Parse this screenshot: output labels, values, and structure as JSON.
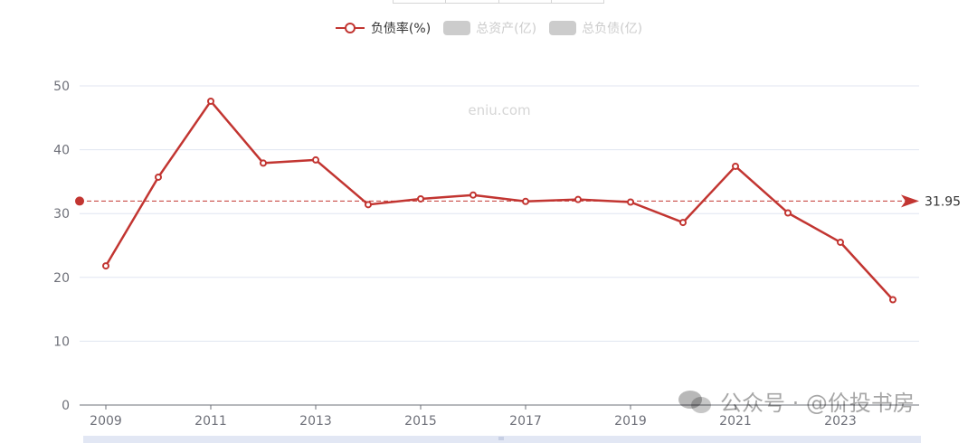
{
  "legend": {
    "items": [
      {
        "label": "负债率(%)",
        "active": true,
        "color": "#c23531"
      },
      {
        "label": "总资产(亿)",
        "active": false,
        "color": "#cccccc"
      },
      {
        "label": "总负债(亿)",
        "active": false,
        "color": "#cccccc"
      }
    ]
  },
  "watermark": {
    "site": "eniu.com",
    "wechat": "公众号 · @价投书房"
  },
  "chart_data": {
    "type": "line",
    "x": [
      2009,
      2010,
      2011,
      2012,
      2013,
      2014,
      2015,
      2016,
      2017,
      2018,
      2019,
      2020,
      2021,
      2022,
      2023,
      2024
    ],
    "xticks": [
      "2009",
      "2011",
      "2013",
      "2015",
      "2017",
      "2019",
      "2021",
      "2023"
    ],
    "series": [
      {
        "name": "负债率(%)",
        "color": "#c23531",
        "values": [
          21.8,
          35.7,
          47.6,
          37.9,
          38.4,
          31.4,
          32.3,
          32.9,
          31.9,
          32.2,
          31.8,
          28.6,
          37.4,
          30.1,
          25.5,
          16.5
        ]
      }
    ],
    "yticks": [
      0,
      10,
      20,
      30,
      40,
      50
    ],
    "ylim": [
      0,
      50
    ],
    "mark_line": {
      "value": 31.95,
      "label": "31.95",
      "color": "#c23531"
    },
    "grid": true,
    "legend_position": "top-center"
  }
}
